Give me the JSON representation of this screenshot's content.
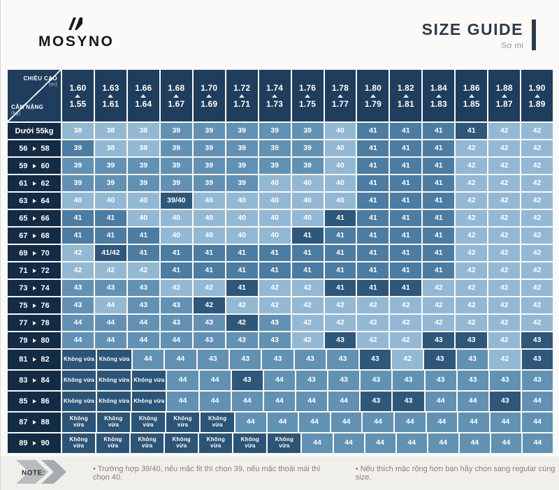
{
  "brand": {
    "logo_text": "MOSYNO"
  },
  "header": {
    "title": "SIZE GUIDE",
    "subtitle": "Sơ mi"
  },
  "chart_data": {
    "type": "table",
    "title": "SIZE GUIDE — Sơ mi",
    "corner": {
      "top_label": "CHIỀU CAO",
      "top_unit": "(m)",
      "bottom_label": "CÂN NẶNG",
      "bottom_unit": "(kg)"
    },
    "height_columns": [
      {
        "max": "1.60",
        "min": "1.55"
      },
      {
        "max": "1.63",
        "min": "1.61"
      },
      {
        "max": "1.66",
        "min": "1.64"
      },
      {
        "max": "1.68",
        "min": "1.67"
      },
      {
        "max": "1.70",
        "min": "1.69"
      },
      {
        "max": "1.72",
        "min": "1.71"
      },
      {
        "max": "1.74",
        "min": "1.73"
      },
      {
        "max": "1.76",
        "min": "1.75"
      },
      {
        "max": "1.78",
        "min": "1.77"
      },
      {
        "max": "1.80",
        "min": "1.79"
      },
      {
        "max": "1.82",
        "min": "1.81"
      },
      {
        "max": "1.84",
        "min": "1.83"
      },
      {
        "max": "1.86",
        "min": "1.85"
      },
      {
        "max": "1.88",
        "min": "1.87"
      },
      {
        "max": "1.90",
        "min": "1.89"
      }
    ],
    "rows": [
      {
        "label": "Dưới 55kg",
        "sizes": [
          "38",
          "38",
          "38",
          "39",
          "39",
          "39",
          "39",
          "39",
          "40",
          "41",
          "41",
          "41",
          "41",
          "42",
          "42"
        ],
        "shades": "LLLMMMMMLDDDNLL"
      },
      {
        "from": "56",
        "to": "58",
        "sizes": [
          "39",
          "38",
          "38",
          "39",
          "39",
          "39",
          "39",
          "39",
          "40",
          "41",
          "41",
          "41",
          "42",
          "42",
          "42"
        ],
        "shades": "DLLMMMMMLDDDLLL"
      },
      {
        "from": "59",
        "to": "60",
        "sizes": [
          "39",
          "39",
          "39",
          "39",
          "39",
          "39",
          "39",
          "39",
          "40",
          "41",
          "41",
          "41",
          "42",
          "42",
          "42"
        ],
        "shades": "MMMMMMMMLDDDLLL"
      },
      {
        "from": "61",
        "to": "62",
        "sizes": [
          "39",
          "39",
          "39",
          "39",
          "39",
          "39",
          "40",
          "40",
          "40",
          "41",
          "41",
          "41",
          "42",
          "42",
          "42"
        ],
        "shades": "MMMMMMLLLDDDLLL"
      },
      {
        "from": "63",
        "to": "64",
        "sizes": [
          "40",
          "40",
          "40",
          "39/40",
          "40",
          "40",
          "40",
          "40",
          "40",
          "41",
          "41",
          "41",
          "42",
          "42",
          "42"
        ],
        "shades": "LLLNLLLLLDDDLLL"
      },
      {
        "from": "65",
        "to": "66",
        "sizes": [
          "41",
          "41",
          "40",
          "40",
          "40",
          "40",
          "40",
          "40",
          "41",
          "41",
          "41",
          "41",
          "42",
          "42",
          "42"
        ],
        "shades": "DDLLLLLLNDDDLLL"
      },
      {
        "from": "67",
        "to": "68",
        "sizes": [
          "41",
          "41",
          "41",
          "40",
          "40",
          "40",
          "40",
          "41",
          "41",
          "41",
          "41",
          "41",
          "42",
          "42",
          "42"
        ],
        "shades": "DDDLLLLNDDDDLLL"
      },
      {
        "from": "69",
        "to": "70",
        "sizes": [
          "42",
          "41/42",
          "41",
          "41",
          "41",
          "41",
          "41",
          "41",
          "41",
          "41",
          "41",
          "41",
          "42",
          "42",
          "42"
        ],
        "shades": "LNDDDDDDDDDDLLL"
      },
      {
        "from": "71",
        "to": "72",
        "sizes": [
          "42",
          "42",
          "42",
          "41",
          "41",
          "41",
          "41",
          "41",
          "41",
          "41",
          "41",
          "41",
          "42",
          "42",
          "42"
        ],
        "shades": "LLLDDDDDDDDDLLL"
      },
      {
        "from": "73",
        "to": "74",
        "sizes": [
          "43",
          "43",
          "43",
          "42",
          "42",
          "41",
          "42",
          "42",
          "41",
          "41",
          "41",
          "42",
          "42",
          "42",
          "42"
        ],
        "shades": "MMMLLNLLNNNLLLL"
      },
      {
        "from": "75",
        "to": "76",
        "sizes": [
          "43",
          "44",
          "43",
          "43",
          "42",
          "42",
          "42",
          "42",
          "42",
          "42",
          "42",
          "42",
          "42",
          "42",
          "42"
        ],
        "shades": "MLMMNLLLLLLLLLL"
      },
      {
        "from": "77",
        "to": "78",
        "sizes": [
          "44",
          "44",
          "44",
          "43",
          "43",
          "42",
          "43",
          "42",
          "42",
          "42",
          "42",
          "42",
          "42",
          "42",
          "42"
        ],
        "shades": "MMMMMNMLLLLLLLL"
      },
      {
        "from": "79",
        "to": "80",
        "sizes": [
          "44",
          "44",
          "44",
          "44",
          "43",
          "43",
          "43",
          "42",
          "43",
          "42",
          "42",
          "43",
          "43",
          "42",
          "43"
        ],
        "shades": "MMMMMMMLNLLNNLN"
      },
      {
        "from": "81",
        "to": "82",
        "sizes": [
          "Không vừa",
          "Không vừa",
          "44",
          "44",
          "43",
          "43",
          "43",
          "43",
          "43",
          "43",
          "42",
          "43",
          "43",
          "42",
          "43"
        ],
        "shades": "KKMMMMMMMNLNMLN"
      },
      {
        "from": "83",
        "to": "84",
        "sizes": [
          "Không vừa",
          "Không vừa",
          "Không vừa",
          "44",
          "44",
          "43",
          "44",
          "43",
          "43",
          "43",
          "43",
          "43",
          "43",
          "43",
          "43"
        ],
        "shades": "KKKMMNMMMMMMMMM"
      },
      {
        "from": "85",
        "to": "86",
        "sizes": [
          "Không vừa",
          "Không vừa",
          "Không vừa",
          "44",
          "44",
          "44",
          "44",
          "44",
          "44",
          "43",
          "43",
          "44",
          "44",
          "43",
          "44"
        ],
        "shades": "KKKMMMMMMNNMMNM"
      },
      {
        "from": "87",
        "to": "88",
        "sizes": [
          "Không vừa",
          "Không vừa",
          "Không vừa",
          "Không vừa",
          "Không vừa",
          "44",
          "44",
          "44",
          "44",
          "44",
          "44",
          "44",
          "44",
          "44",
          "44"
        ],
        "shades": "KKKKKMMMMMMMMMM"
      },
      {
        "from": "89",
        "to": "90",
        "sizes": [
          "Không vừa",
          "Không vừa",
          "Không vừa",
          "Không vừa",
          "Không vừa",
          "Không vừa",
          "Không vừa",
          "44",
          "44",
          "44",
          "44",
          "44",
          "44",
          "44",
          "44"
        ],
        "shades": "KKKKKKKMMMMMMMM"
      }
    ],
    "not_fit_label": "Không vừa"
  },
  "palette": {
    "L": "#93b8d3",
    "M": "#6291b4",
    "D": "#4c7ca2",
    "N": "#2f577a",
    "K": "#2c5476",
    "header_bg": "#1f3d5c",
    "label_bg": "#132b44",
    "accent": "#2e3c4b"
  },
  "note": {
    "label": "NOTE:",
    "items": [
      "Trường hợp 39/40, nếu mặc fit thì chọn 39, nếu mặc thoải mái thì chọn 40.",
      "Nếu thích mặc rộng hơn bạn hãy chọn sang regular cùng size."
    ]
  }
}
